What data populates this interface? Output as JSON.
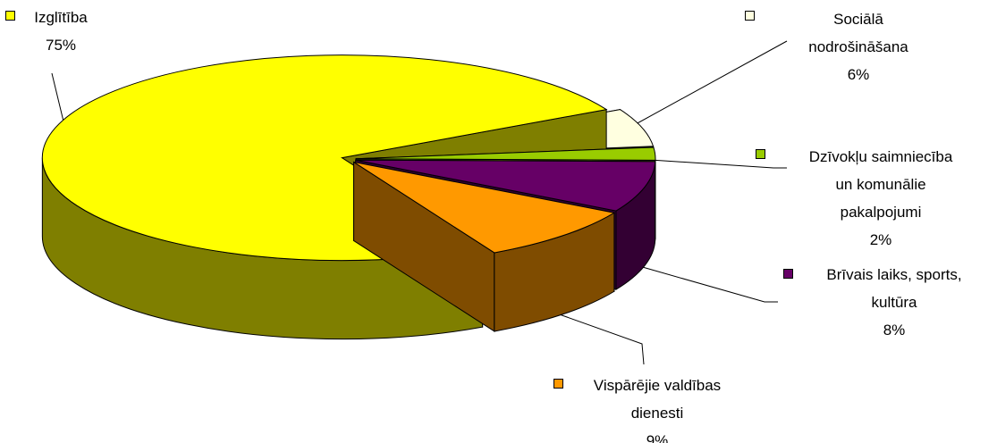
{
  "chart_data": {
    "type": "pie",
    "categories": [
      "Izglītība",
      "Sociālā nodrošināšana",
      "Dzīvokļu saimniecība un komunālie pakalpojumi",
      "Brīvais laiks, sports, kultūra",
      "Vispārējie valdības dienesti"
    ],
    "values": [
      75,
      6,
      2,
      8,
      9
    ],
    "value_labels": [
      "75%",
      "6%",
      "2%",
      "8%",
      "9%"
    ],
    "colors": [
      "#ffff00",
      "#ffffe0",
      "#99cc00",
      "#660066",
      "#ff9900"
    ]
  }
}
